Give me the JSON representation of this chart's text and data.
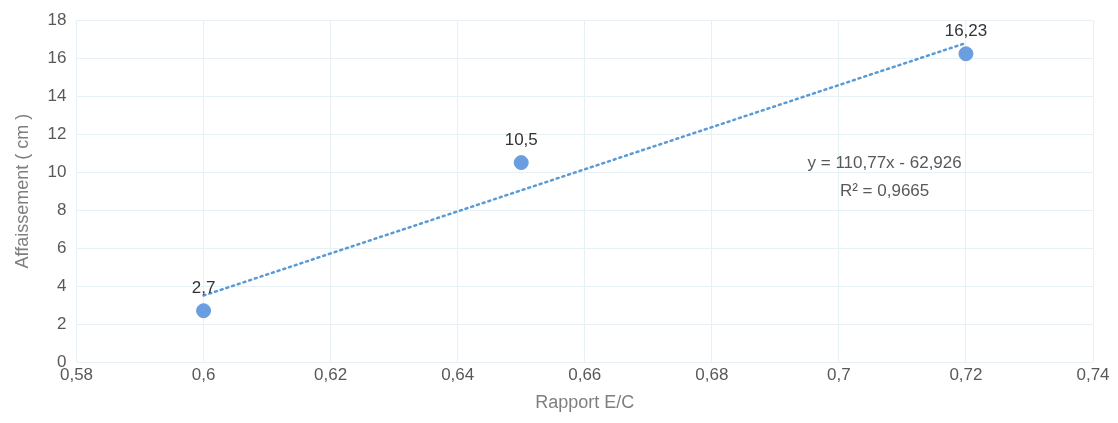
{
  "chart_data": {
    "type": "scatter",
    "xlabel": "Rapport E/C",
    "ylabel": "Affaissement ( cm )",
    "series": [
      {
        "type": "scatter",
        "color": "#6a9ee0",
        "x": [
          0.6,
          0.65,
          0.72
        ],
        "values": [
          2.7,
          10.5,
          16.23
        ],
        "value_labels": [
          "2,7",
          "10,5",
          "16,23"
        ]
      },
      {
        "type": "line",
        "color": "#5b9bd5",
        "line_style": "dotted",
        "marker": "none",
        "x": [
          0.6,
          0.72
        ],
        "values": [
          3.5,
          16.8
        ]
      }
    ],
    "marker": "circle",
    "annotations": [
      "y = 110,77x - 62,926",
      "R² = 0,9665"
    ],
    "xlim": [
      0.58,
      0.74
    ],
    "xticks": [
      {
        "value": 0.58,
        "label": "0,58"
      },
      {
        "value": 0.6,
        "label": "0,6"
      },
      {
        "value": 0.62,
        "label": "0,62"
      },
      {
        "value": 0.64,
        "label": "0,64"
      },
      {
        "value": 0.66,
        "label": "0,66"
      },
      {
        "value": 0.68,
        "label": "0,68"
      },
      {
        "value": 0.7,
        "label": "0,7"
      },
      {
        "value": 0.72,
        "label": "0,72"
      },
      {
        "value": 0.74,
        "label": "0,74"
      }
    ],
    "ylim": [
      0,
      18
    ],
    "yticks": [
      0,
      2,
      4,
      6,
      8,
      10,
      12,
      14,
      16,
      18
    ],
    "grid": true,
    "legend": false
  }
}
